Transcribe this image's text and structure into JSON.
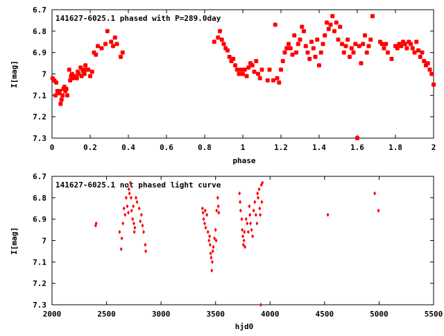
{
  "chart_data": [
    {
      "type": "scatter",
      "title": "141627-6025.1 phased with P=289.0day",
      "xlabel": "phase",
      "ylabel": "I[mag]",
      "xlim": [
        0,
        2
      ],
      "ylim": [
        6.7,
        7.3
      ],
      "y_inverted": true,
      "x_ticks": [
        "0",
        "0.2",
        "0.4",
        "0.6",
        "0.8",
        "1",
        "1.2",
        "1.4",
        "1.6",
        "1.8",
        "2"
      ],
      "y_ticks": [
        "6.7",
        "6.8",
        "6.9",
        "7",
        "7.1",
        "7.2",
        "7.3"
      ],
      "grid": false,
      "marker": "filled-circle",
      "color": "#ff0000",
      "points": [
        [
          0.003,
          7.02
        ],
        [
          0.008,
          7.03
        ],
        [
          0.012,
          7.03
        ],
        [
          0.018,
          7.1
        ],
        [
          0.022,
          7.04
        ],
        [
          0.028,
          7.08
        ],
        [
          0.035,
          7.09
        ],
        [
          0.04,
          7.08
        ],
        [
          0.045,
          7.14
        ],
        [
          0.05,
          7.12
        ],
        [
          0.055,
          7.1
        ],
        [
          0.06,
          7.07
        ],
        [
          0.065,
          7.06
        ],
        [
          0.07,
          7.08
        ],
        [
          0.075,
          7.07
        ],
        [
          0.08,
          7.1
        ],
        [
          0.09,
          6.98
        ],
        [
          0.095,
          7.03
        ],
        [
          0.1,
          7.01
        ],
        [
          0.105,
          7.0
        ],
        [
          0.11,
          7.02
        ],
        [
          0.12,
          7.01
        ],
        [
          0.13,
          7.02
        ],
        [
          0.135,
          6.99
        ],
        [
          0.14,
          7.0
        ],
        [
          0.15,
          6.97
        ],
        [
          0.155,
          7.01
        ],
        [
          0.16,
          6.98
        ],
        [
          0.165,
          6.99
        ],
        [
          0.17,
          7.0
        ],
        [
          0.175,
          6.96
        ],
        [
          0.18,
          6.98
        ],
        [
          0.19,
          6.98
        ],
        [
          0.2,
          7.01
        ],
        [
          0.21,
          6.99
        ],
        [
          0.22,
          6.9
        ],
        [
          0.23,
          6.91
        ],
        [
          0.24,
          6.87
        ],
        [
          0.26,
          6.88
        ],
        [
          0.28,
          6.86
        ],
        [
          0.29,
          6.8
        ],
        [
          0.31,
          6.85
        ],
        [
          0.32,
          6.87
        ],
        [
          0.33,
          6.83
        ],
        [
          0.34,
          6.86
        ],
        [
          0.36,
          6.92
        ],
        [
          0.37,
          6.9
        ],
        [
          0.85,
          6.85
        ],
        [
          0.87,
          6.83
        ],
        [
          0.88,
          6.8
        ],
        [
          0.89,
          6.84
        ],
        [
          0.9,
          6.86
        ],
        [
          0.91,
          6.88
        ],
        [
          0.92,
          6.89
        ],
        [
          0.93,
          6.92
        ],
        [
          0.94,
          6.94
        ],
        [
          0.95,
          6.93
        ],
        [
          0.96,
          6.96
        ],
        [
          0.97,
          6.98
        ],
        [
          0.98,
          7.0
        ],
        [
          0.99,
          6.98
        ],
        [
          1.0,
          7.0
        ],
        [
          1.01,
          6.98
        ],
        [
          1.02,
          7.01
        ],
        [
          1.03,
          6.97
        ],
        [
          1.04,
          6.95
        ],
        [
          1.05,
          6.96
        ],
        [
          1.06,
          6.99
        ],
        [
          1.07,
          6.94
        ],
        [
          1.08,
          7.0
        ],
        [
          1.09,
          7.02
        ],
        [
          1.1,
          6.98
        ],
        [
          1.13,
          7.03
        ],
        [
          1.14,
          6.98
        ],
        [
          1.16,
          7.03
        ],
        [
          1.17,
          6.77
        ],
        [
          1.18,
          7.02
        ],
        [
          1.19,
          7.04
        ],
        [
          1.2,
          6.98
        ],
        [
          1.21,
          6.94
        ],
        [
          1.22,
          6.9
        ],
        [
          1.23,
          6.88
        ],
        [
          1.24,
          6.86
        ],
        [
          1.25,
          6.88
        ],
        [
          1.26,
          6.91
        ],
        [
          1.27,
          6.82
        ],
        [
          1.28,
          6.9
        ],
        [
          1.29,
          6.86
        ],
        [
          1.3,
          6.84
        ],
        [
          1.31,
          6.78
        ],
        [
          1.32,
          6.8
        ],
        [
          1.33,
          6.87
        ],
        [
          1.34,
          6.9
        ],
        [
          1.35,
          6.93
        ],
        [
          1.36,
          6.85
        ],
        [
          1.37,
          6.88
        ],
        [
          1.38,
          6.92
        ],
        [
          1.39,
          6.84
        ],
        [
          1.4,
          6.96
        ],
        [
          1.41,
          6.9
        ],
        [
          1.42,
          6.86
        ],
        [
          1.43,
          6.82
        ],
        [
          1.44,
          6.76
        ],
        [
          1.45,
          6.79
        ],
        [
          1.46,
          6.77
        ],
        [
          1.47,
          6.73
        ],
        [
          1.48,
          6.8
        ],
        [
          1.49,
          6.76
        ],
        [
          1.5,
          6.84
        ],
        [
          1.51,
          6.78
        ],
        [
          1.52,
          6.86
        ],
        [
          1.53,
          6.9
        ],
        [
          1.54,
          6.87
        ],
        [
          1.55,
          6.84
        ],
        [
          1.56,
          6.92
        ],
        [
          1.57,
          6.88
        ],
        [
          1.58,
          6.9
        ],
        [
          1.59,
          6.86
        ],
        [
          1.6,
          7.3
        ],
        [
          1.61,
          6.87
        ],
        [
          1.62,
          6.95
        ],
        [
          1.63,
          6.86
        ],
        [
          1.64,
          6.82
        ],
        [
          1.65,
          6.9
        ],
        [
          1.66,
          6.87
        ],
        [
          1.67,
          6.84
        ],
        [
          1.68,
          6.73
        ],
        [
          1.72,
          6.85
        ],
        [
          1.73,
          6.86
        ],
        [
          1.74,
          6.88
        ],
        [
          1.75,
          6.86
        ],
        [
          1.76,
          6.9
        ],
        [
          1.78,
          6.93
        ],
        [
          1.8,
          6.87
        ],
        [
          1.81,
          6.88
        ],
        [
          1.82,
          6.86
        ],
        [
          1.83,
          6.87
        ],
        [
          1.84,
          6.85
        ],
        [
          1.85,
          6.86
        ],
        [
          1.86,
          6.88
        ],
        [
          1.87,
          6.85
        ],
        [
          1.88,
          6.86
        ],
        [
          1.89,
          6.88
        ],
        [
          1.9,
          6.9
        ],
        [
          1.91,
          6.85
        ],
        [
          1.92,
          6.89
        ],
        [
          1.93,
          6.92
        ],
        [
          1.94,
          6.9
        ],
        [
          1.95,
          6.94
        ],
        [
          1.96,
          6.96
        ],
        [
          1.97,
          6.95
        ],
        [
          1.98,
          6.98
        ],
        [
          1.99,
          7.0
        ],
        [
          2.0,
          7.05
        ]
      ]
    },
    {
      "type": "scatter",
      "title": "141627-6025.1 not phased light curve",
      "xlabel": "hjd0",
      "ylabel": "I[mag]",
      "xlim": [
        2000,
        5500
      ],
      "ylim": [
        6.7,
        7.3
      ],
      "y_inverted": true,
      "x_ticks": [
        "2000",
        "2500",
        "3000",
        "3500",
        "4000",
        "4500",
        "5000",
        "5500"
      ],
      "y_ticks": [
        "6.7",
        "6.8",
        "6.9",
        "7",
        "7.1",
        "7.2",
        "7.3"
      ],
      "grid": false,
      "marker": "small-diamond",
      "color": "#ff0000",
      "points": [
        [
          2400,
          6.93
        ],
        [
          2405,
          6.92
        ],
        [
          2620,
          6.96
        ],
        [
          2635,
          7.04
        ],
        [
          2640,
          6.99
        ],
        [
          2650,
          6.92
        ],
        [
          2660,
          6.85
        ],
        [
          2670,
          6.88
        ],
        [
          2680,
          6.8
        ],
        [
          2690,
          6.84
        ],
        [
          2700,
          6.87
        ],
        [
          2705,
          6.76
        ],
        [
          2710,
          6.78
        ],
        [
          2720,
          6.73
        ],
        [
          2725,
          6.8
        ],
        [
          2730,
          6.86
        ],
        [
          2740,
          6.9
        ],
        [
          2745,
          6.84
        ],
        [
          2750,
          6.92
        ],
        [
          2755,
          6.96
        ],
        [
          2760,
          6.94
        ],
        [
          2770,
          6.8
        ],
        [
          2780,
          6.82
        ],
        [
          2800,
          6.85
        ],
        [
          2810,
          6.91
        ],
        [
          2820,
          6.88
        ],
        [
          2830,
          6.93
        ],
        [
          2840,
          6.96
        ],
        [
          2855,
          7.02
        ],
        [
          2860,
          7.05
        ],
        [
          3380,
          6.85
        ],
        [
          3385,
          6.87
        ],
        [
          3390,
          6.9
        ],
        [
          3400,
          6.92
        ],
        [
          3405,
          6.86
        ],
        [
          3410,
          6.94
        ],
        [
          3420,
          6.88
        ],
        [
          3430,
          6.96
        ],
        [
          3440,
          7.0
        ],
        [
          3445,
          6.98
        ],
        [
          3450,
          7.02
        ],
        [
          3455,
          7.06
        ],
        [
          3460,
          7.08
        ],
        [
          3465,
          7.14
        ],
        [
          3470,
          7.1
        ],
        [
          3475,
          7.05
        ],
        [
          3480,
          7.03
        ],
        [
          3490,
          6.99
        ],
        [
          3500,
          6.95
        ],
        [
          3505,
          7.0
        ],
        [
          3510,
          6.86
        ],
        [
          3520,
          6.8
        ],
        [
          3525,
          6.84
        ],
        [
          3530,
          6.87
        ],
        [
          3720,
          6.78
        ],
        [
          3725,
          6.82
        ],
        [
          3730,
          6.86
        ],
        [
          3740,
          6.9
        ],
        [
          3745,
          6.95
        ],
        [
          3750,
          6.98
        ],
        [
          3755,
          7.02
        ],
        [
          3760,
          7.0
        ],
        [
          3765,
          6.96
        ],
        [
          3770,
          7.03
        ],
        [
          3780,
          6.9
        ],
        [
          3790,
          6.92
        ],
        [
          3800,
          6.96
        ],
        [
          3810,
          6.84
        ],
        [
          3815,
          6.88
        ],
        [
          3820,
          6.92
        ],
        [
          3830,
          6.95
        ],
        [
          3840,
          6.98
        ],
        [
          3850,
          6.86
        ],
        [
          3860,
          6.82
        ],
        [
          3870,
          6.88
        ],
        [
          3880,
          6.92
        ],
        [
          3885,
          6.78
        ],
        [
          3890,
          6.8
        ],
        [
          3900,
          6.76
        ],
        [
          3905,
          6.85
        ],
        [
          3910,
          6.88
        ],
        [
          3920,
          6.74
        ],
        [
          3925,
          6.82
        ],
        [
          3930,
          6.73
        ],
        [
          3915,
          7.3
        ],
        [
          4530,
          6.88
        ],
        [
          4960,
          6.78
        ],
        [
          4995,
          6.86
        ]
      ]
    }
  ]
}
